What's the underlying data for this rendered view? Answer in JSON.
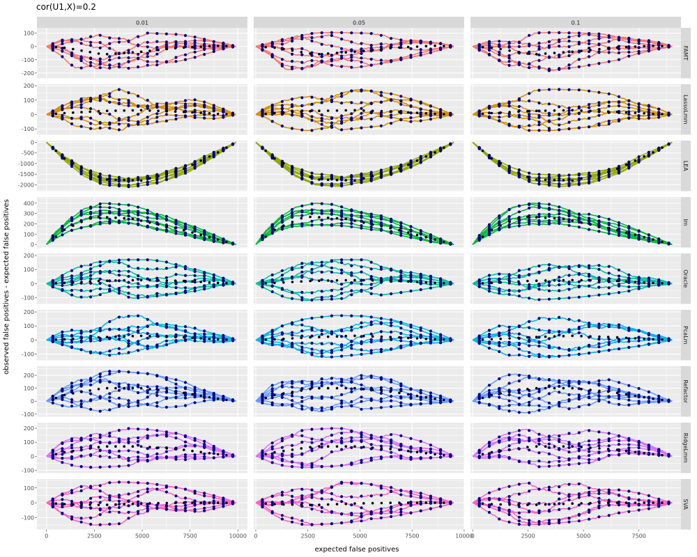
{
  "title": "cor(U1,X)=0.2",
  "xlabel": "expected false positives",
  "ylabel": "observed false positives - expected false positives",
  "chart_data": {
    "type": "line",
    "title": "cor(U1,X)=0.2",
    "xlabel": "expected false positives",
    "ylabel": "observed false positives - expected false positives",
    "grid": true,
    "facet_columns": [
      "0.01",
      "0.05",
      "0.1"
    ],
    "facet_rows": [
      "FAMT",
      "LassoLmm",
      "LEA",
      "lm",
      "Oracle",
      "PcaLm",
      "Refactor",
      "RidgeLmm",
      "SVA"
    ],
    "x_ticks": [
      0,
      2500,
      5000,
      7500,
      10000
    ],
    "x_tick_labels": [
      "0",
      "2500",
      "5000",
      "7500",
      "10000"
    ],
    "columns": [
      {
        "label": "0.01",
        "xlim": [
          -500,
          10500
        ]
      },
      {
        "label": "0.05",
        "xlim": [
          -100,
          10000
        ]
      },
      {
        "label": "0.1",
        "xlim": [
          -100,
          9400
        ]
      }
    ],
    "rows": [
      {
        "label": "FAMT",
        "color": "#F8766D",
        "ylim": [
          -240,
          140
        ],
        "yticks": [
          100,
          0,
          -100,
          -200
        ],
        "envelope": [
          [
            0,
            0
          ],
          [
            0.07,
            45
          ],
          [
            0.15,
            80
          ],
          [
            0.25,
            100
          ],
          [
            0.4,
            105
          ],
          [
            0.55,
            100
          ],
          [
            0.7,
            90
          ],
          [
            0.85,
            55
          ],
          [
            0.95,
            25
          ],
          [
            1,
            0
          ]
        ],
        "lower": [
          [
            0,
            0
          ],
          [
            0.07,
            -60
          ],
          [
            0.15,
            -170
          ],
          [
            0.25,
            -200
          ],
          [
            0.4,
            -180
          ],
          [
            0.55,
            -150
          ],
          [
            0.7,
            -110
          ],
          [
            0.85,
            -60
          ],
          [
            0.95,
            -20
          ],
          [
            1,
            0
          ]
        ],
        "trend": [
          [
            0.1,
            -10
          ],
          [
            0.3,
            -60
          ],
          [
            0.5,
            -40
          ],
          [
            0.7,
            -10
          ],
          [
            0.9,
            5
          ]
        ]
      },
      {
        "label": "LassoLmm",
        "color": "#D39200",
        "ylim": [
          -140,
          210
        ],
        "yticks": [
          200,
          100,
          0,
          -100
        ],
        "envelope": [
          [
            0,
            0
          ],
          [
            0.07,
            70
          ],
          [
            0.15,
            120
          ],
          [
            0.25,
            160
          ],
          [
            0.4,
            175
          ],
          [
            0.55,
            170
          ],
          [
            0.7,
            140
          ],
          [
            0.85,
            80
          ],
          [
            0.95,
            30
          ],
          [
            1,
            0
          ]
        ],
        "lower": [
          [
            0,
            0
          ],
          [
            0.07,
            -40
          ],
          [
            0.15,
            -90
          ],
          [
            0.25,
            -110
          ],
          [
            0.4,
            -110
          ],
          [
            0.55,
            -90
          ],
          [
            0.7,
            -70
          ],
          [
            0.85,
            -40
          ],
          [
            0.95,
            -15
          ],
          [
            1,
            0
          ]
        ],
        "trend": [
          [
            0.1,
            10
          ],
          [
            0.3,
            25
          ],
          [
            0.5,
            30
          ],
          [
            0.7,
            20
          ],
          [
            0.9,
            5
          ]
        ]
      },
      {
        "label": "LEA",
        "color": "#93AA00",
        "ylim": [
          -2300,
          80
        ],
        "yticks": [
          0,
          -500,
          -1000,
          -1500,
          -2000
        ],
        "envelope": [
          [
            0,
            0
          ],
          [
            0.1,
            -700
          ],
          [
            0.2,
            -1200
          ],
          [
            0.3,
            -1500
          ],
          [
            0.45,
            -1550
          ],
          [
            0.6,
            -1400
          ],
          [
            0.75,
            -1000
          ],
          [
            0.9,
            -400
          ],
          [
            1,
            0
          ]
        ],
        "lower": [
          [
            0,
            0
          ],
          [
            0.1,
            -900
          ],
          [
            0.2,
            -1600
          ],
          [
            0.3,
            -2000
          ],
          [
            0.45,
            -2100
          ],
          [
            0.6,
            -1900
          ],
          [
            0.75,
            -1400
          ],
          [
            0.9,
            -600
          ],
          [
            1,
            0
          ]
        ],
        "trend": [
          [
            0.1,
            -800
          ],
          [
            0.3,
            -1750
          ],
          [
            0.5,
            -1800
          ],
          [
            0.7,
            -1350
          ],
          [
            0.9,
            -500
          ]
        ]
      },
      {
        "label": "lm",
        "color": "#00BA38",
        "ylim": [
          -30,
          460
        ],
        "yticks": [
          400,
          300,
          200,
          100,
          0
        ],
        "envelope": [
          [
            0,
            0
          ],
          [
            0.05,
            130
          ],
          [
            0.12,
            260
          ],
          [
            0.2,
            360
          ],
          [
            0.3,
            400
          ],
          [
            0.45,
            380
          ],
          [
            0.6,
            300
          ],
          [
            0.75,
            200
          ],
          [
            0.9,
            80
          ],
          [
            1,
            0
          ]
        ],
        "lower": [
          [
            0,
            0
          ],
          [
            0.05,
            60
          ],
          [
            0.12,
            130
          ],
          [
            0.2,
            170
          ],
          [
            0.3,
            190
          ],
          [
            0.45,
            180
          ],
          [
            0.6,
            140
          ],
          [
            0.75,
            80
          ],
          [
            0.9,
            20
          ],
          [
            1,
            0
          ]
        ],
        "trend": [
          [
            0.1,
            150
          ],
          [
            0.25,
            270
          ],
          [
            0.45,
            250
          ],
          [
            0.7,
            150
          ],
          [
            0.9,
            50
          ]
        ]
      },
      {
        "label": "Oracle",
        "color": "#00C19F",
        "ylim": [
          -145,
          215
        ],
        "yticks": [
          200,
          100,
          0,
          -100
        ],
        "envelope": [
          [
            0,
            0
          ],
          [
            0.07,
            60
          ],
          [
            0.15,
            110
          ],
          [
            0.25,
            150
          ],
          [
            0.4,
            170
          ],
          [
            0.55,
            170
          ],
          [
            0.7,
            140
          ],
          [
            0.85,
            80
          ],
          [
            0.95,
            30
          ],
          [
            1,
            0
          ]
        ],
        "lower": [
          [
            0,
            0
          ],
          [
            0.07,
            -50
          ],
          [
            0.15,
            -100
          ],
          [
            0.25,
            -120
          ],
          [
            0.4,
            -110
          ],
          [
            0.55,
            -95
          ],
          [
            0.7,
            -70
          ],
          [
            0.85,
            -40
          ],
          [
            0.95,
            -15
          ],
          [
            1,
            0
          ]
        ],
        "trend": [
          [
            0.1,
            5
          ],
          [
            0.3,
            20
          ],
          [
            0.5,
            25
          ],
          [
            0.7,
            20
          ],
          [
            0.9,
            5
          ]
        ]
      },
      {
        "label": "PcaLm",
        "color": "#00B9E3",
        "ylim": [
          -145,
          215
        ],
        "yticks": [
          200,
          100,
          0,
          -100
        ],
        "envelope": [
          [
            0,
            0
          ],
          [
            0.07,
            60
          ],
          [
            0.15,
            110
          ],
          [
            0.25,
            150
          ],
          [
            0.4,
            175
          ],
          [
            0.55,
            170
          ],
          [
            0.7,
            140
          ],
          [
            0.85,
            80
          ],
          [
            0.95,
            30
          ],
          [
            1,
            0
          ]
        ],
        "lower": [
          [
            0,
            0
          ],
          [
            0.07,
            -50
          ],
          [
            0.15,
            -100
          ],
          [
            0.25,
            -130
          ],
          [
            0.4,
            -120
          ],
          [
            0.55,
            -100
          ],
          [
            0.7,
            -70
          ],
          [
            0.85,
            -40
          ],
          [
            0.95,
            -15
          ],
          [
            1,
            0
          ]
        ],
        "trend": [
          [
            0.1,
            5
          ],
          [
            0.3,
            20
          ],
          [
            0.5,
            30
          ],
          [
            0.7,
            20
          ],
          [
            0.9,
            5
          ]
        ]
      },
      {
        "label": "Refactor",
        "color": "#619CFF",
        "ylim": [
          -120,
          270
        ],
        "yticks": [
          200,
          100,
          0,
          -100
        ],
        "envelope": [
          [
            0,
            0
          ],
          [
            0.07,
            110
          ],
          [
            0.15,
            190
          ],
          [
            0.25,
            230
          ],
          [
            0.4,
            230
          ],
          [
            0.55,
            210
          ],
          [
            0.7,
            160
          ],
          [
            0.85,
            90
          ],
          [
            0.95,
            35
          ],
          [
            1,
            0
          ]
        ],
        "lower": [
          [
            0,
            0
          ],
          [
            0.07,
            -30
          ],
          [
            0.15,
            -70
          ],
          [
            0.25,
            -90
          ],
          [
            0.4,
            -80
          ],
          [
            0.55,
            -60
          ],
          [
            0.7,
            -40
          ],
          [
            0.85,
            -20
          ],
          [
            0.95,
            -10
          ],
          [
            1,
            0
          ]
        ],
        "trend": [
          [
            0.1,
            50
          ],
          [
            0.3,
            100
          ],
          [
            0.5,
            100
          ],
          [
            0.7,
            70
          ],
          [
            0.9,
            20
          ]
        ]
      },
      {
        "label": "RidgeLmm",
        "color": "#DB72FB",
        "ylim": [
          -120,
          240
        ],
        "yticks": [
          200,
          100,
          0,
          -100
        ],
        "envelope": [
          [
            0,
            0
          ],
          [
            0.07,
            90
          ],
          [
            0.15,
            150
          ],
          [
            0.25,
            190
          ],
          [
            0.4,
            200
          ],
          [
            0.55,
            190
          ],
          [
            0.7,
            160
          ],
          [
            0.85,
            100
          ],
          [
            0.95,
            40
          ],
          [
            1,
            0
          ]
        ],
        "lower": [
          [
            0,
            0
          ],
          [
            0.07,
            -40
          ],
          [
            0.15,
            -70
          ],
          [
            0.25,
            -80
          ],
          [
            0.4,
            -70
          ],
          [
            0.55,
            -50
          ],
          [
            0.7,
            -30
          ],
          [
            0.85,
            -15
          ],
          [
            0.95,
            -5
          ],
          [
            1,
            0
          ]
        ],
        "trend": [
          [
            0.1,
            30
          ],
          [
            0.3,
            70
          ],
          [
            0.5,
            70
          ],
          [
            0.7,
            50
          ],
          [
            0.9,
            15
          ]
        ]
      },
      {
        "label": "SVA",
        "color": "#FF61C3",
        "ylim": [
          -180,
          160
        ],
        "yticks": [
          100,
          0,
          -100
        ],
        "envelope": [
          [
            0,
            0
          ],
          [
            0.07,
            60
          ],
          [
            0.15,
            100
          ],
          [
            0.25,
            130
          ],
          [
            0.4,
            140
          ],
          [
            0.55,
            130
          ],
          [
            0.7,
            100
          ],
          [
            0.85,
            60
          ],
          [
            0.95,
            25
          ],
          [
            1,
            0
          ]
        ],
        "lower": [
          [
            0,
            0
          ],
          [
            0.07,
            -70
          ],
          [
            0.15,
            -120
          ],
          [
            0.25,
            -150
          ],
          [
            0.4,
            -140
          ],
          [
            0.55,
            -120
          ],
          [
            0.7,
            -90
          ],
          [
            0.85,
            -50
          ],
          [
            0.95,
            -20
          ],
          [
            1,
            0
          ]
        ],
        "trend": [
          [
            0.1,
            -10
          ],
          [
            0.3,
            -15
          ],
          [
            0.5,
            -5
          ],
          [
            0.7,
            0
          ],
          [
            0.9,
            0
          ]
        ]
      }
    ],
    "column_xmax": [
      9900,
      9500,
      9000
    ]
  }
}
